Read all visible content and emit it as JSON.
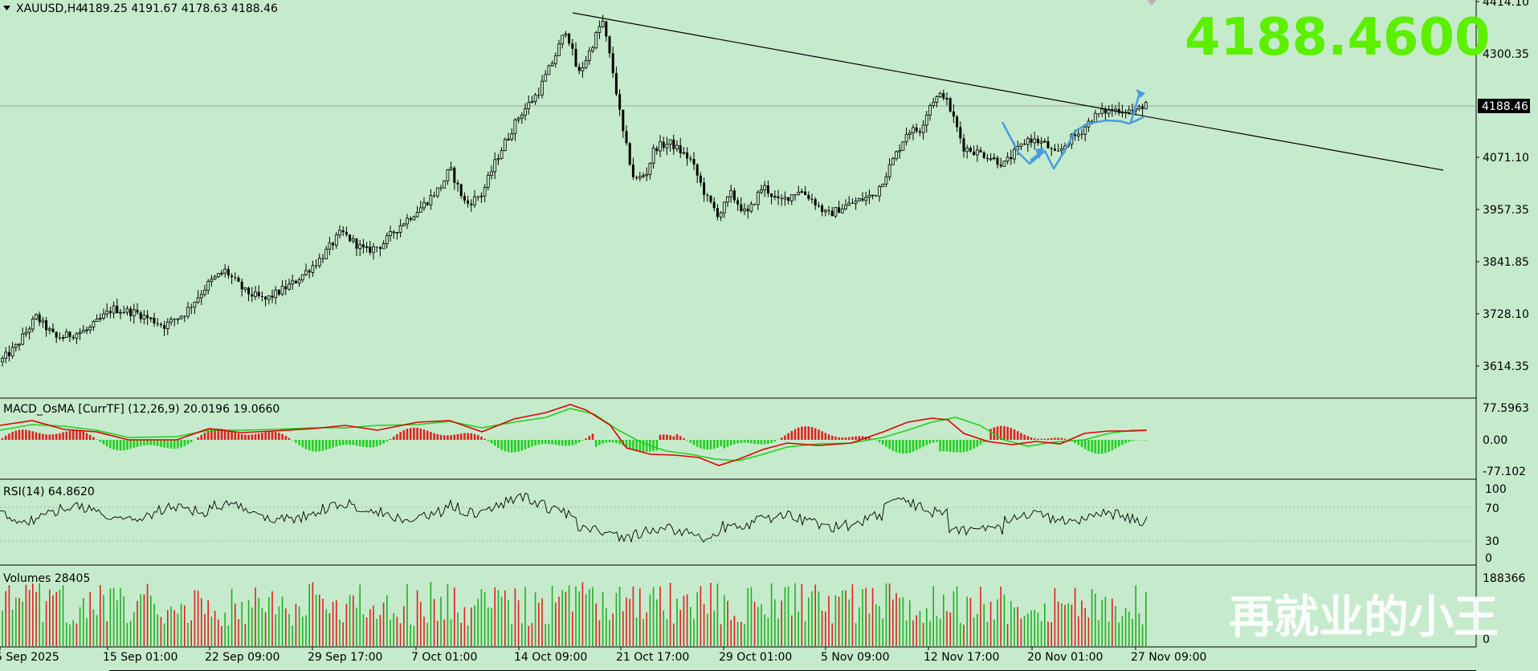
{
  "main": {
    "title": "XAUUSD,H4",
    "ohlc": "4189.25 4191.67 4178.63 4188.46",
    "big_price": "4188.4600",
    "current_price_tag": "4188.46",
    "price_axis_labels": [
      "4414.10",
      "4300.35",
      "4071.10",
      "3957.35",
      "3841.85",
      "3728.10",
      "3614.35"
    ],
    "watermark": "再就业的小王"
  },
  "macd": {
    "title": "MACD_OsMA [CurrTF] (12,26,9) 20.0196 19.0660",
    "axis_labels": [
      "77.5963",
      "0.00",
      "-77.102"
    ]
  },
  "rsi": {
    "title": "RSI(14) 64.8620",
    "axis_labels": [
      "100",
      "70",
      "30",
      "0"
    ]
  },
  "volumes": {
    "title": "Volumes 28405",
    "axis_labels": [
      "188366",
      "0"
    ]
  },
  "time_axis": [
    "5 Sep 2025",
    "15 Sep 01:00",
    "22 Sep 09:00",
    "29 Sep 17:00",
    "7 Oct 01:00",
    "14 Oct 09:00",
    "21 Oct 17:00",
    "29 Oct 01:00",
    "5 Nov 09:00",
    "12 Nov 17:00",
    "20 Nov 01:00",
    "27 Nov 09:00"
  ],
  "colors": {
    "background": "#c6ebcc",
    "candle": "#000000",
    "trendline": "#000000",
    "pattern": "#4a9be0",
    "big_price": "#5cf000",
    "macd_line": "#e00000",
    "signal_line": "#20d020",
    "hist_pos": "#e02020",
    "hist_neg": "#20d020",
    "vol_up": "#20b020",
    "vol_down": "#e02020"
  },
  "chart_data": [
    {
      "type": "candlestick",
      "title": "XAUUSD,H4",
      "x": [
        "5 Sep 2025",
        "15 Sep 01:00",
        "22 Sep 09:00",
        "29 Sep 17:00",
        "7 Oct 01:00",
        "14 Oct 09:00",
        "21 Oct 17:00",
        "29 Oct 01:00",
        "5 Nov 09:00",
        "12 Nov 17:00",
        "20 Nov 01:00",
        "27 Nov 09:00"
      ],
      "close": [
        3590,
        3650,
        3775,
        3850,
        4000,
        4240,
        4120,
        3985,
        4000,
        4200,
        4060,
        4188.46
      ],
      "last_bar": {
        "open": 4189.25,
        "high": 4191.67,
        "low": 4178.63,
        "close": 4188.46
      },
      "trendline": [
        {
          "x": "14 Oct 09:00",
          "y": 4391
        },
        {
          "x": "30 Nov",
          "y": 4055
        }
      ],
      "ylim": [
        3560,
        4430
      ]
    },
    {
      "type": "line",
      "title": "MACD_OsMA [CurrTF] (12,26,9)",
      "values_last": {
        "macd": 20.0196,
        "signal": 19.066
      },
      "ylim": [
        -77.102,
        77.5963
      ]
    },
    {
      "type": "line",
      "title": "RSI(14)",
      "value_last": 64.862,
      "levels": [
        70,
        30
      ],
      "ylim": [
        0,
        100
      ]
    },
    {
      "type": "bar",
      "title": "Volumes",
      "value_last": 28405,
      "ylim": [
        0,
        188366
      ]
    }
  ]
}
